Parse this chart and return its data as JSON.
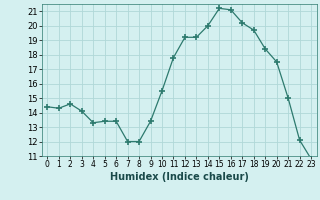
{
  "x": [
    0,
    1,
    2,
    3,
    4,
    5,
    6,
    7,
    8,
    9,
    10,
    11,
    12,
    13,
    14,
    15,
    16,
    17,
    18,
    19,
    20,
    21,
    22,
    23
  ],
  "y": [
    14.4,
    14.3,
    14.6,
    14.1,
    13.3,
    13.4,
    13.4,
    12.0,
    12.0,
    13.4,
    15.5,
    17.8,
    19.2,
    19.2,
    20.0,
    21.2,
    21.1,
    20.2,
    19.7,
    18.4,
    17.5,
    15.0,
    12.1,
    10.8
  ],
  "line_color": "#2d7a6e",
  "marker": "+",
  "marker_size": 4,
  "bg_color": "#d4f0f0",
  "grid_color": "#b0d8d8",
  "xlabel": "Humidex (Indice chaleur)",
  "xlim": [
    -0.5,
    23.5
  ],
  "ylim": [
    11,
    21.5
  ],
  "yticks": [
    11,
    12,
    13,
    14,
    15,
    16,
    17,
    18,
    19,
    20,
    21
  ],
  "xticks": [
    0,
    1,
    2,
    3,
    4,
    5,
    6,
    7,
    8,
    9,
    10,
    11,
    12,
    13,
    14,
    15,
    16,
    17,
    18,
    19,
    20,
    21,
    22,
    23
  ]
}
